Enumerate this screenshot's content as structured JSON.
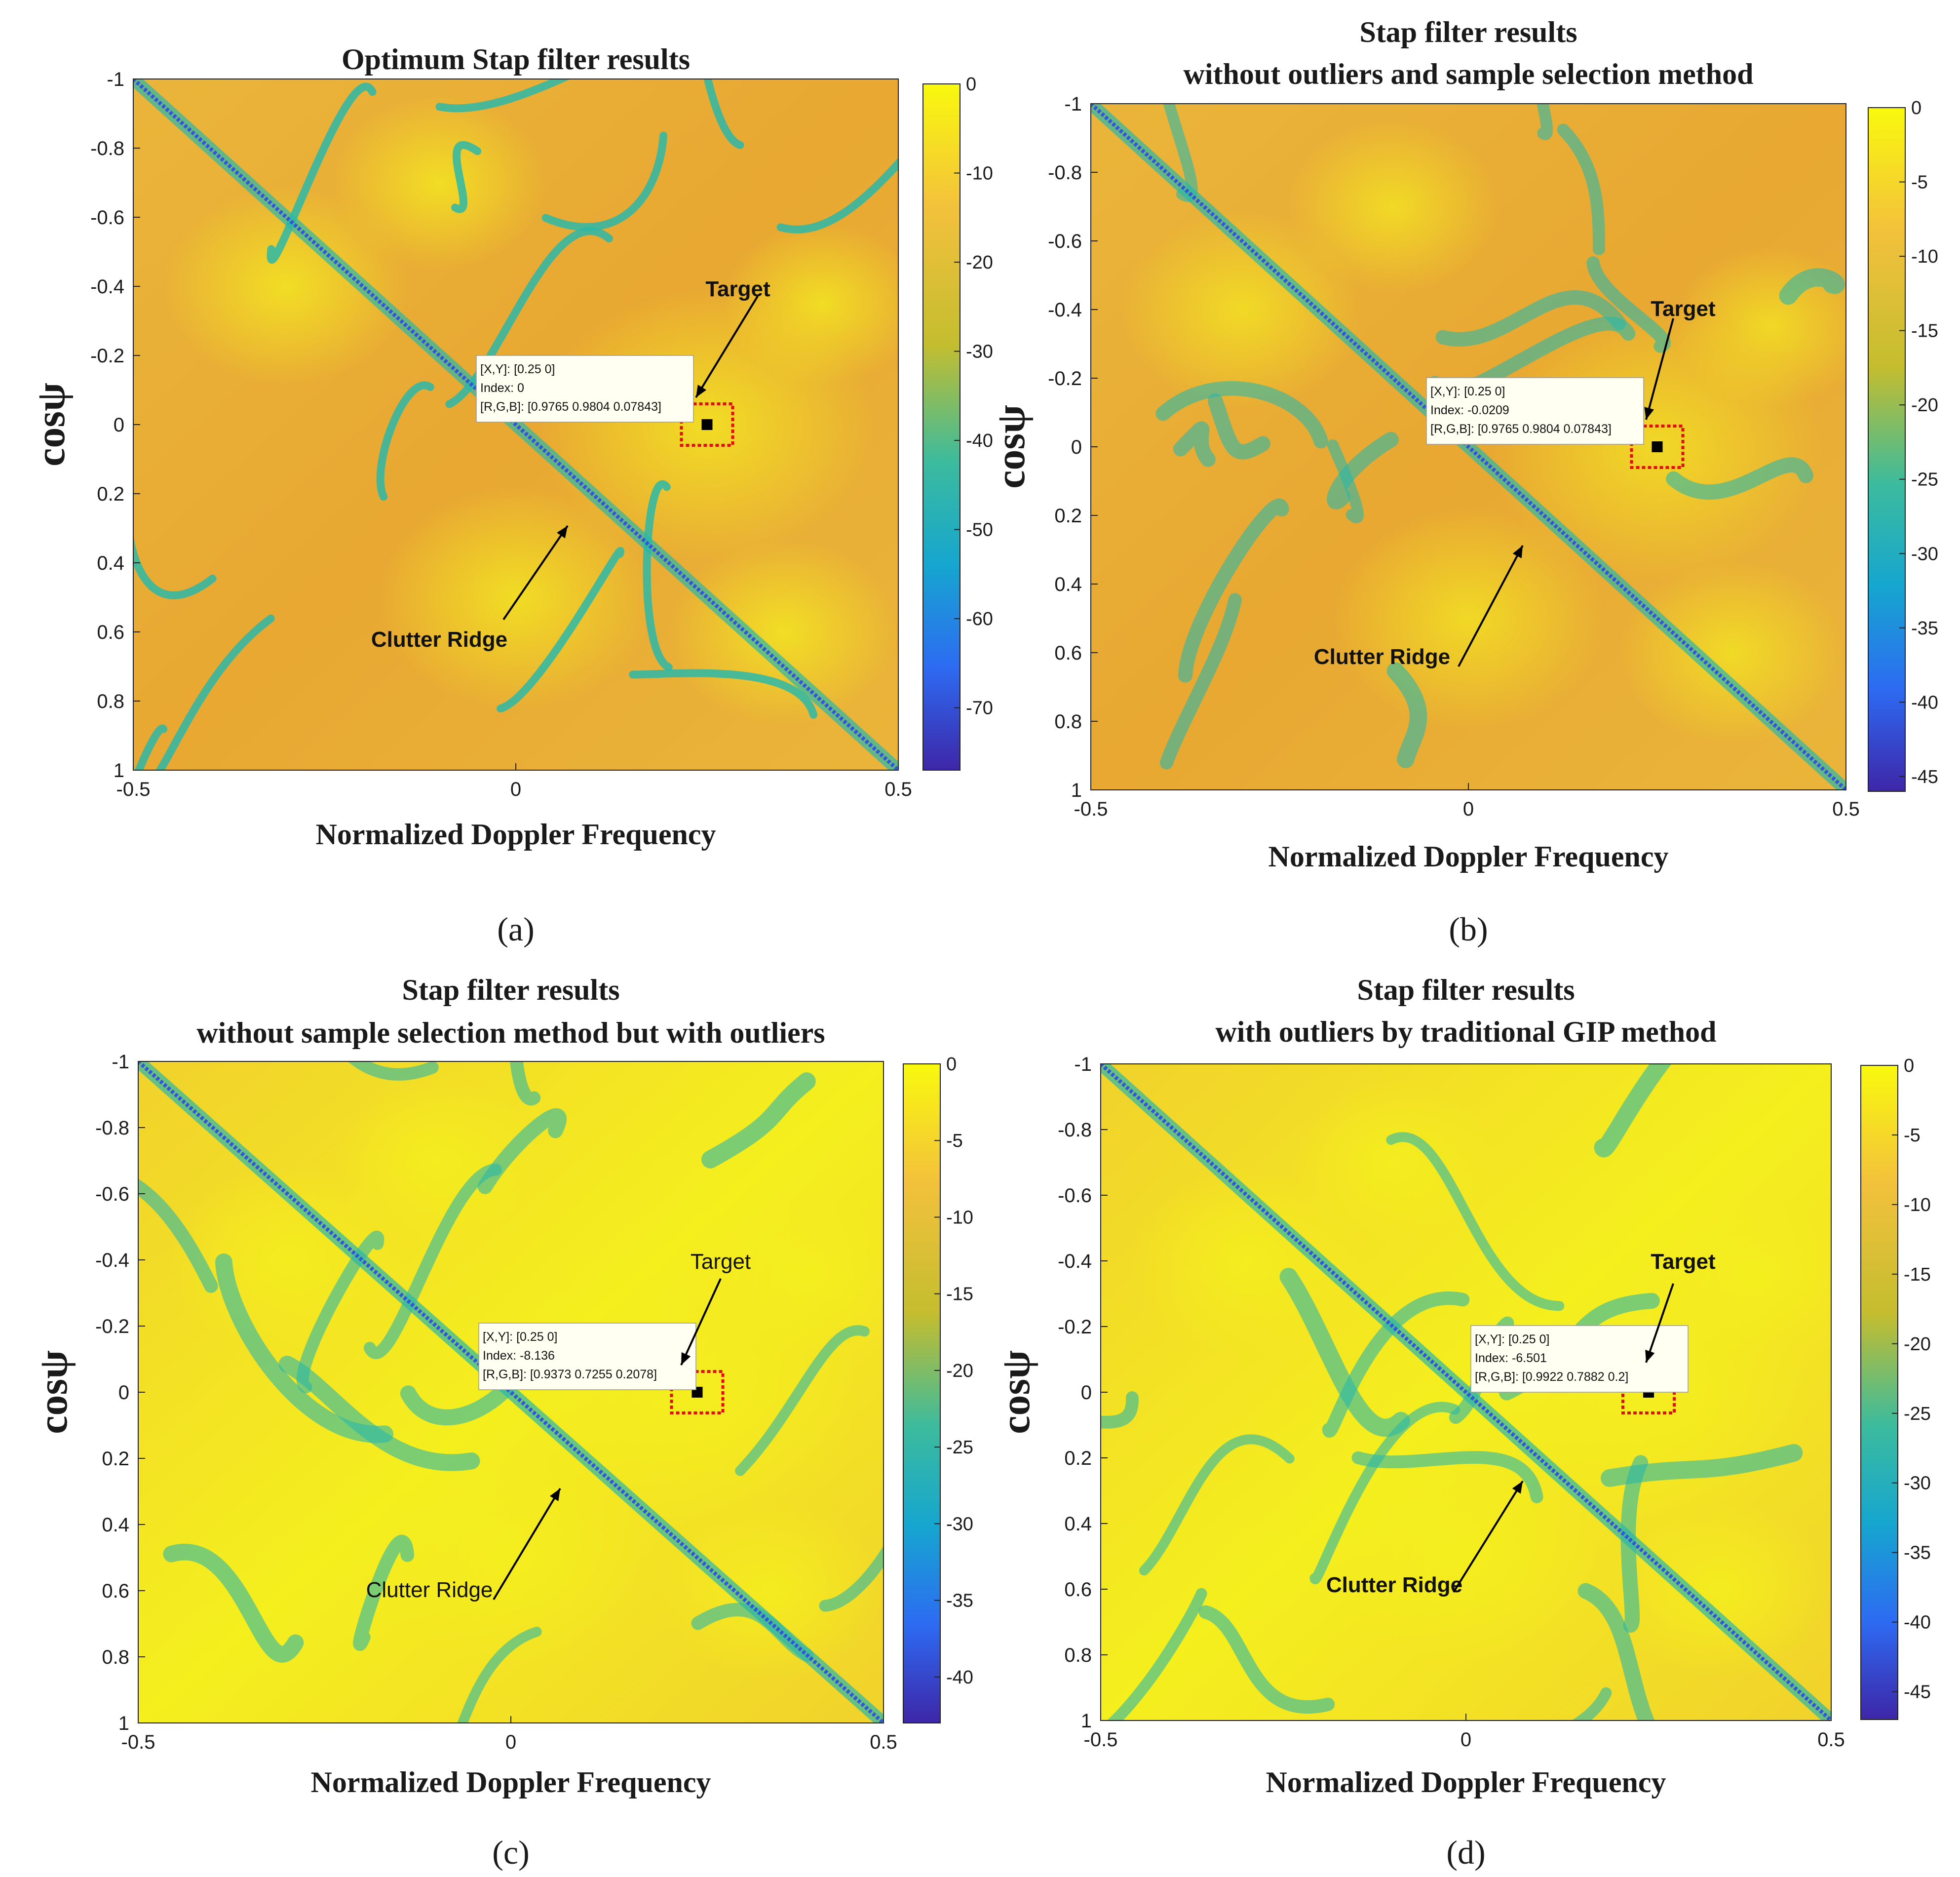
{
  "colors": {
    "background_deep": "#e8a832",
    "background_bright": "#f5ef1e",
    "cyan_band": "#2bb8a8",
    "ridge_blue": "#3355d8",
    "target_box": "#e01010",
    "tooltip_bg": "#fffff2"
  },
  "chart_data": [
    {
      "panel": "a",
      "type": "heatmap",
      "title": [
        "Optimum Stap filter results"
      ],
      "xlabel": "Normalized Doppler Frequency",
      "ylabel": "cosψ",
      "xlim": [
        -0.5,
        0.5
      ],
      "ylim": [
        -1,
        1
      ],
      "xticks": [
        "-0.5",
        "0",
        "0.5"
      ],
      "yticks": [
        "-1",
        "-0.8",
        "-0.6",
        "-0.4",
        "-0.2",
        "0",
        "0.2",
        "0.4",
        "0.6",
        "0.8",
        "1"
      ],
      "colorbar": {
        "min": -77,
        "max": 0,
        "ticks": [
          "0",
          "-10",
          "-20",
          "-30",
          "-40",
          "-50",
          "-60",
          "-70"
        ]
      },
      "target_label": "Target",
      "clutter_label": "Clutter Ridge",
      "label_style": "bold",
      "target": {
        "x": 0.25,
        "y": 0
      },
      "datatip": [
        "[X,Y]: [0.25 0]",
        "Index: 0",
        "[R,G,B]: [0.9765 0.9804 0.07843]"
      ],
      "panel_label": "(a)",
      "brightness": 0.45
    },
    {
      "panel": "b",
      "type": "heatmap",
      "title": [
        "Stap filter results",
        "without outliers and  sample selection method"
      ],
      "xlabel": "Normalized Doppler Frequency",
      "ylabel": "cosψ",
      "xlim": [
        -0.5,
        0.5
      ],
      "ylim": [
        -1,
        1
      ],
      "xticks": [
        "-0.5",
        "0",
        "0.5"
      ],
      "yticks": [
        "-1",
        "-0.8",
        "-0.6",
        "-0.4",
        "-0.2",
        "0",
        "0.2",
        "0.4",
        "0.6",
        "0.8",
        "1"
      ],
      "colorbar": {
        "min": -46,
        "max": 0,
        "ticks": [
          "0",
          "-5",
          "-10",
          "-15",
          "-20",
          "-25",
          "-30",
          "-35",
          "-40",
          "-45"
        ]
      },
      "target_label": "Target",
      "clutter_label": "Clutter Ridge",
      "label_style": "bold",
      "target": {
        "x": 0.25,
        "y": 0
      },
      "datatip": [
        "[X,Y]: [0.25 0]",
        "Index: -0.0209",
        "[R,G,B]: [0.9765 0.9804 0.07843]"
      ],
      "panel_label": "(b)",
      "brightness": 0.3
    },
    {
      "panel": "c",
      "type": "heatmap",
      "title": [
        "Stap filter results",
        "without  sample selection method but with outliers"
      ],
      "xlabel": "Normalized Doppler Frequency",
      "ylabel": "cosψ",
      "xlim": [
        -0.5,
        0.5
      ],
      "ylim": [
        -1,
        1
      ],
      "xticks": [
        "-0.5",
        "0",
        "0.5"
      ],
      "yticks": [
        "-1",
        "-0.8",
        "-0.6",
        "-0.4",
        "-0.2",
        "0",
        "0.2",
        "0.4",
        "0.6",
        "0.8",
        "1"
      ],
      "colorbar": {
        "min": -43,
        "max": 0,
        "ticks": [
          "0",
          "-5",
          "-10",
          "-15",
          "-20",
          "-25",
          "-30",
          "-35",
          "-40"
        ]
      },
      "target_label": "Target",
      "clutter_label": "Clutter Ridge",
      "label_style": "normal",
      "target": {
        "x": 0.25,
        "y": 0
      },
      "datatip": [
        "[X,Y]: [0.25 0]",
        "Index: -8.136",
        "[R,G,B]: [0.9373 0.7255 0.2078]"
      ],
      "panel_label": "(c)",
      "brightness": 0.75
    },
    {
      "panel": "d",
      "type": "heatmap",
      "title": [
        "Stap filter results",
        "with outliers by traditional GIP method"
      ],
      "xlabel": "Normalized Doppler Frequency",
      "ylabel": "cosψ",
      "xlim": [
        -0.5,
        0.5
      ],
      "ylim": [
        -1,
        1
      ],
      "xticks": [
        "-0.5",
        "0",
        "0.5"
      ],
      "yticks": [
        "-1",
        "-0.8",
        "-0.6",
        "-0.4",
        "-0.2",
        "0",
        "0.2",
        "0.4",
        "0.6",
        "0.8",
        "1"
      ],
      "colorbar": {
        "min": -47,
        "max": 0,
        "ticks": [
          "0",
          "-5",
          "-10",
          "-15",
          "-20",
          "-25",
          "-30",
          "-35",
          "-40",
          "-45"
        ]
      },
      "target_label": "Target",
      "clutter_label": "Clutter Ridge",
      "label_style": "bold",
      "target": {
        "x": 0.25,
        "y": 0
      },
      "datatip": [
        "[X,Y]: [0.25 0]",
        "Index: -6.501",
        "[R,G,B]: [0.9922 0.7882 0.2]"
      ],
      "panel_label": "(d)",
      "brightness": 0.8
    }
  ]
}
